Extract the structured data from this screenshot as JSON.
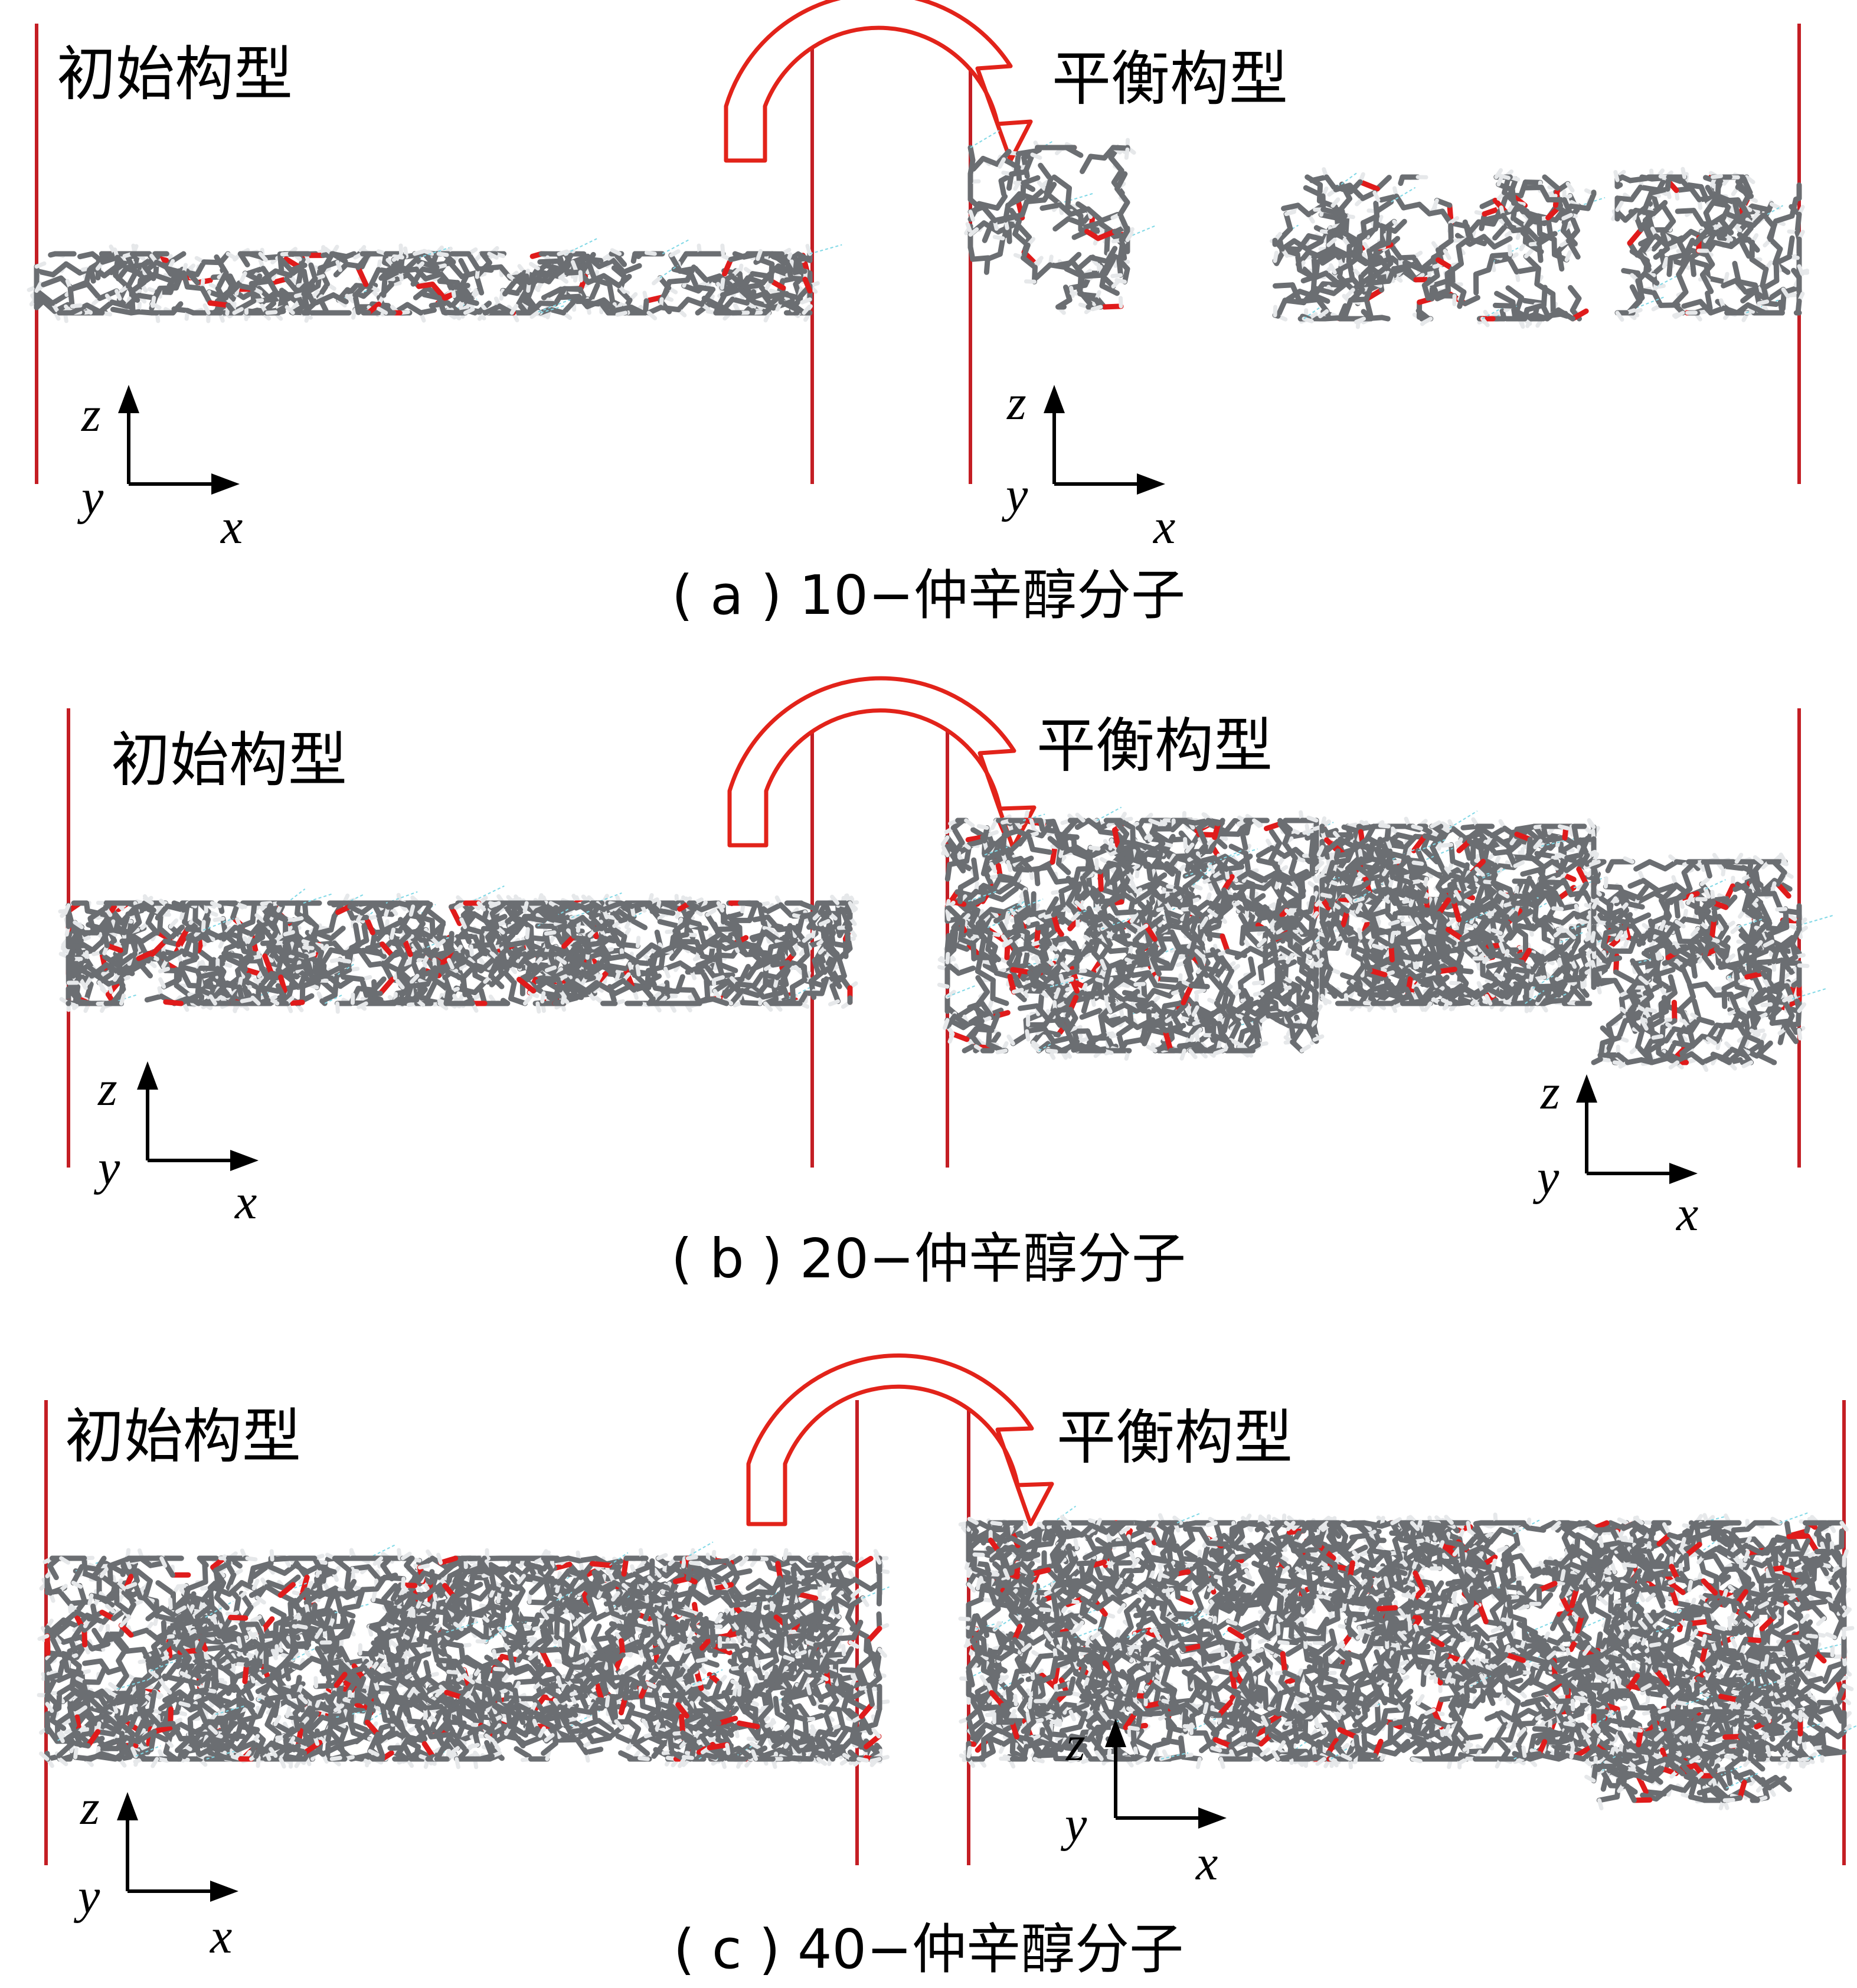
{
  "panels": [
    {
      "id": "a",
      "initial_label": "初始构型",
      "equilibrium_label": "平衡构型",
      "caption": "( a ) 10−仲辛醇分子",
      "axes": {
        "z": "z",
        "y": "y",
        "x": "x"
      },
      "molecule_count": 10
    },
    {
      "id": "b",
      "initial_label": "初始构型",
      "equilibrium_label": "平衡构型",
      "caption": "( b ) 20−仲辛醇分子",
      "axes": {
        "z": "z",
        "y": "y",
        "x": "x"
      },
      "molecule_count": 20
    },
    {
      "id": "c",
      "initial_label": "初始构型",
      "equilibrium_label": "平衡构型",
      "caption": "( c ) 40−仲辛醇分子",
      "axes": {
        "z": "z",
        "y": "y",
        "x": "x"
      },
      "molecule_count": 40
    }
  ],
  "colors": {
    "boundary": "#c41e24",
    "arrow": "#e2231a",
    "carbon": "#6b6e72",
    "hydrogen": "#e6e8ea",
    "oxygen": "#e01b1b",
    "hbond": "#7fd8e6",
    "text": "#000000"
  }
}
